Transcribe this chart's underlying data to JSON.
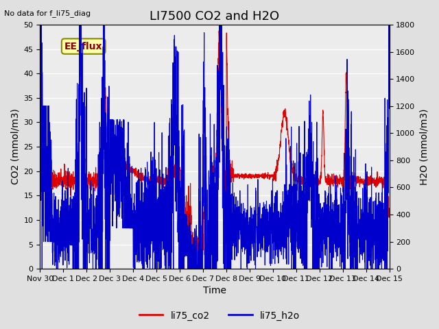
{
  "title": "LI7500 CO2 and H2O",
  "top_left_text": "No data for f_li75_diag",
  "annotation_box": "EE_flux",
  "xlabel": "Time",
  "ylabel_left": "CO2 (mmol/m3)",
  "ylabel_right": "H2O (mmol/m3)",
  "ylim_left": [
    0,
    50
  ],
  "ylim_right": [
    0,
    1800
  ],
  "yticks_left": [
    0,
    5,
    10,
    15,
    20,
    25,
    30,
    35,
    40,
    45,
    50
  ],
  "yticks_right": [
    0,
    200,
    400,
    600,
    800,
    1000,
    1200,
    1400,
    1600,
    1800
  ],
  "xtick_labels": [
    "Nov 30",
    "Dec 1",
    "Dec 2",
    "Dec 3",
    "Dec 4",
    "Dec 5",
    "Dec 6",
    "Dec 7",
    "Dec 8",
    "Dec 9",
    "Dec 10",
    "Dec 11",
    "Dec 12",
    "Dec 13",
    "Dec 14",
    "Dec 15"
  ],
  "xtick_positions": [
    0,
    1,
    2,
    3,
    4,
    5,
    6,
    7,
    8,
    9,
    10,
    11,
    12,
    13,
    14,
    15
  ],
  "legend_entries": [
    "li75_co2",
    "li75_h2o"
  ],
  "legend_colors": [
    "#dd0000",
    "#0000cc"
  ],
  "co2_color": "#dd0000",
  "h2o_color": "#0000cc",
  "background_color": "#e0e0e0",
  "plot_bg_color": "#ececec",
  "grid_color": "#ffffff",
  "title_fontsize": 13,
  "axis_label_fontsize": 10,
  "tick_fontsize": 8,
  "annotation_fontsize": 10
}
